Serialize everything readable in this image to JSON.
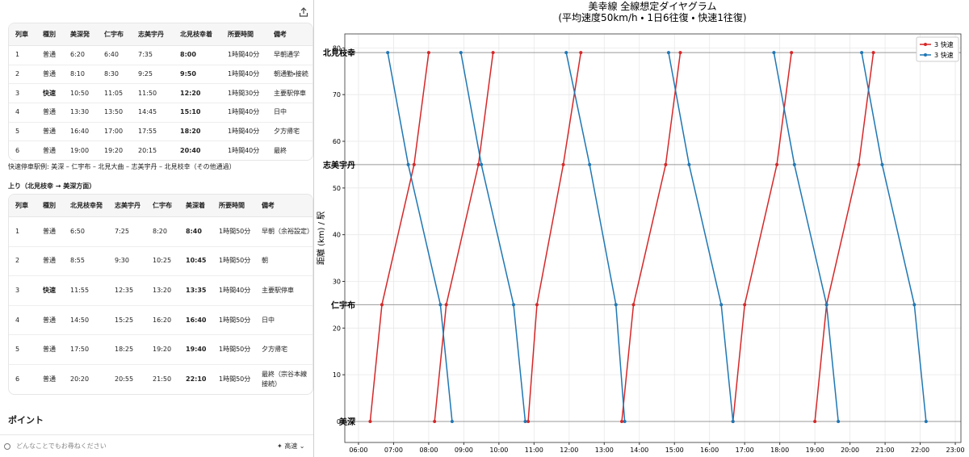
{
  "left_panel": {
    "down_table": {
      "headers": [
        "列車",
        "種別",
        "美深発",
        "仁宇布",
        "志美宇丹",
        "北見枝幸着",
        "所要時間",
        "備考"
      ],
      "rows": [
        [
          "1",
          "普通",
          "6:20",
          "6:40",
          "7:35",
          "8:00",
          "1時間40分",
          "早朝通学"
        ],
        [
          "2",
          "普通",
          "8:10",
          "8:30",
          "9:25",
          "9:50",
          "1時間40分",
          "朝通勤・接続"
        ],
        [
          "3",
          "快速",
          "10:50",
          "11:05",
          "11:50",
          "12:20",
          "1時間30分",
          "主要駅停車"
        ],
        [
          "4",
          "普通",
          "13:30",
          "13:50",
          "14:45",
          "15:10",
          "1時間40分",
          "日中"
        ],
        [
          "5",
          "普通",
          "16:40",
          "17:00",
          "17:55",
          "18:20",
          "1時間40分",
          "夕方帰宅"
        ],
        [
          "6",
          "普通",
          "19:00",
          "19:20",
          "20:15",
          "20:40",
          "1時間40分",
          "最終"
        ]
      ]
    },
    "express_note": "快速停車駅例: 美深 – 仁宇布 – 北見大曲 – 志美宇丹 – 北見枝幸（その他通過）",
    "up_heading": "上り（北見枝幸 → 美深方面）",
    "up_table": {
      "headers": [
        "列車",
        "種別",
        "北見枝幸発",
        "志美宇丹",
        "仁宇布",
        "美深着",
        "所要時間",
        "備考"
      ],
      "rows": [
        [
          "1",
          "普通",
          "6:50",
          "7:25",
          "8:20",
          "8:40",
          "1時間50分",
          "早朝（余裕設定）"
        ],
        [
          "2",
          "普通",
          "8:55",
          "9:30",
          "10:25",
          "10:45",
          "1時間50分",
          "朝"
        ],
        [
          "3",
          "快速",
          "11:55",
          "12:35",
          "13:20",
          "13:35",
          "1時間40分",
          "主要駅停車"
        ],
        [
          "4",
          "普通",
          "14:50",
          "15:25",
          "16:20",
          "16:40",
          "1時間50分",
          "日中"
        ],
        [
          "5",
          "普通",
          "17:50",
          "18:25",
          "19:20",
          "19:40",
          "1時間50分",
          "夕方帰宅"
        ],
        [
          "6",
          "普通",
          "20:20",
          "20:55",
          "21:50",
          "22:10",
          "1時間50分",
          "最終（宗谷本線接続）"
        ]
      ]
    },
    "point_heading": "ポイント",
    "input": {
      "placeholder": "どんなことでもお尋ねください",
      "mode": "高速"
    }
  },
  "chart_data": {
    "type": "line",
    "title": "美幸線 全線想定ダイヤグラム",
    "subtitle": "(平均速度50km/h ・ 1日6往復 ・ 快速1往復)",
    "y_label": "距離 (km) / 駅",
    "xlim": [
      5.61,
      23.16
    ],
    "ylim": [
      -4.5,
      83
    ],
    "xticks": [
      {
        "value": 6,
        "label": "06:00"
      },
      {
        "value": 7,
        "label": "07:00"
      },
      {
        "value": 8,
        "label": "08:00"
      },
      {
        "value": 9,
        "label": "09:00"
      },
      {
        "value": 10,
        "label": "10:00"
      },
      {
        "value": 11,
        "label": "11:00"
      },
      {
        "value": 12,
        "label": "12:00"
      },
      {
        "value": 13,
        "label": "13:00"
      },
      {
        "value": 14,
        "label": "14:00"
      },
      {
        "value": 15,
        "label": "15:00"
      },
      {
        "value": 16,
        "label": "16:00"
      },
      {
        "value": 17,
        "label": "17:00"
      },
      {
        "value": 18,
        "label": "18:00"
      },
      {
        "value": 19,
        "label": "19:00"
      },
      {
        "value": 20,
        "label": "20:00"
      },
      {
        "value": 21,
        "label": "21:00"
      },
      {
        "value": 22,
        "label": "22:00"
      },
      {
        "value": 23,
        "label": "23:00"
      }
    ],
    "yticks": [
      0,
      10,
      20,
      30,
      40,
      50,
      60,
      70,
      80
    ],
    "grid": true,
    "legend": "upper right",
    "stations": [
      {
        "name": "美深",
        "km": 0
      },
      {
        "name": "仁宇布",
        "km": 25
      },
      {
        "name": "志美宇丹",
        "km": 55
      },
      {
        "name": "北見枝幸",
        "km": 79
      }
    ],
    "series": [
      {
        "name": "3 快速",
        "color": "#d62728",
        "x": [
          6.333,
          6.667,
          7.583,
          8.0,
          null,
          8.167,
          8.5,
          9.417,
          9.833,
          null,
          10.833,
          11.083,
          11.833,
          12.333,
          null,
          13.5,
          13.833,
          14.75,
          15.167,
          null,
          16.667,
          17.0,
          17.917,
          18.333,
          null,
          19.0,
          19.333,
          20.25,
          20.667
        ],
        "values": [
          0,
          25,
          55,
          79,
          null,
          0,
          25,
          55,
          79,
          null,
          0,
          25,
          55,
          79,
          null,
          0,
          25,
          55,
          79,
          null,
          0,
          25,
          55,
          79,
          null,
          0,
          25,
          55,
          79
        ]
      },
      {
        "name": "3 快速",
        "color": "#1f77b4",
        "x": [
          6.833,
          7.417,
          8.333,
          8.667,
          null,
          8.917,
          9.5,
          10.417,
          10.75,
          null,
          11.917,
          12.583,
          13.333,
          13.583,
          null,
          14.833,
          15.417,
          16.333,
          16.667,
          null,
          17.833,
          18.417,
          19.333,
          19.667,
          null,
          20.333,
          20.917,
          21.833,
          22.167
        ],
        "values": [
          79,
          55,
          25,
          0,
          null,
          79,
          55,
          25,
          0,
          null,
          79,
          55,
          25,
          0,
          null,
          79,
          55,
          25,
          0,
          null,
          79,
          55,
          25,
          0,
          null,
          79,
          55,
          25,
          0
        ]
      }
    ]
  }
}
